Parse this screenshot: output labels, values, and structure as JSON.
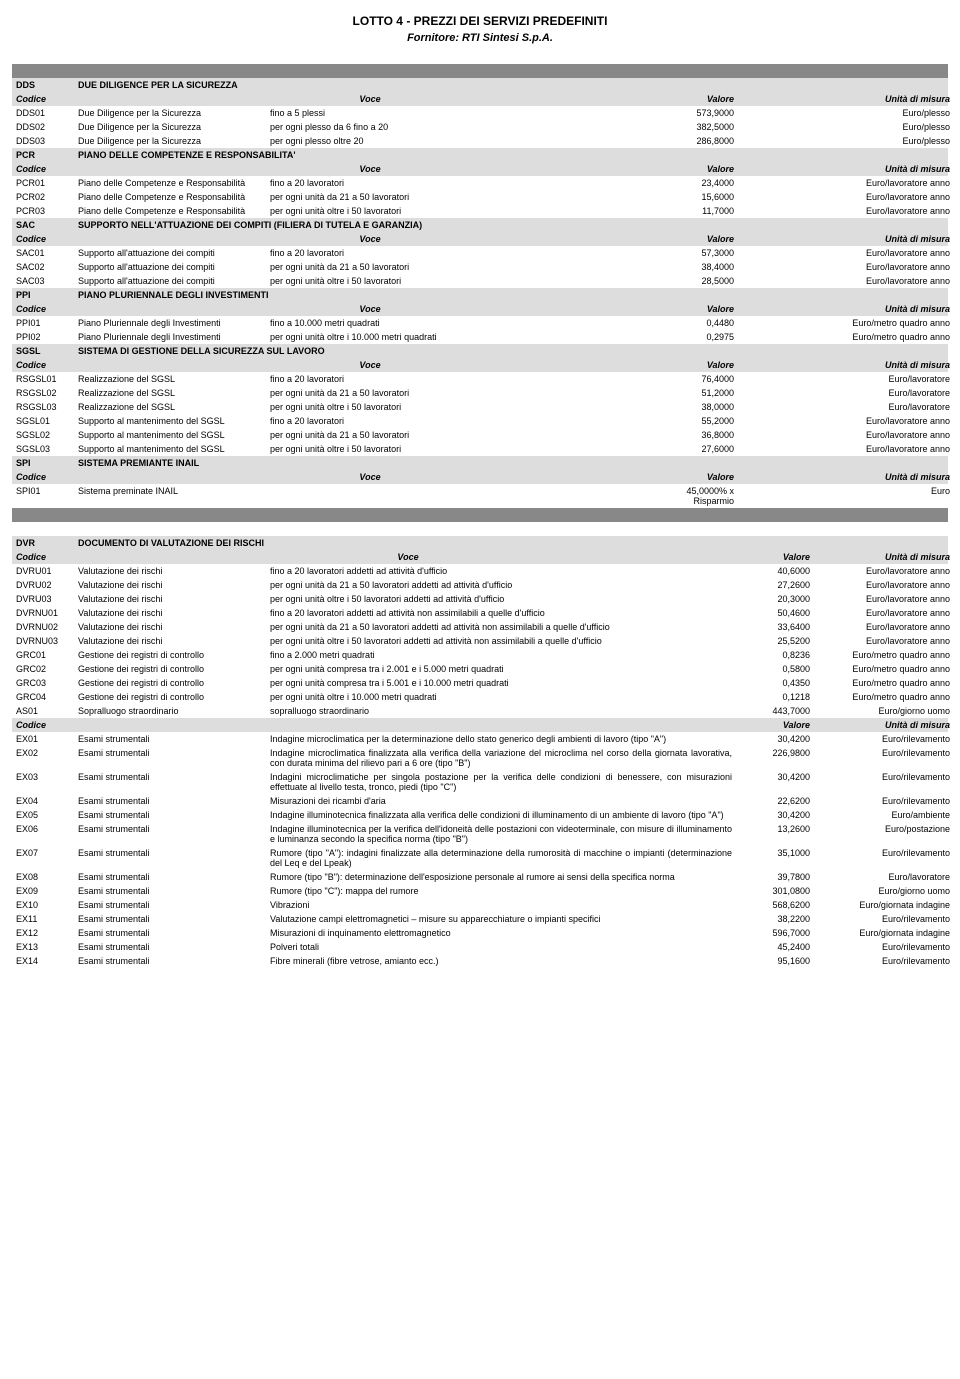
{
  "page": {
    "title": "LOTTO 4 - PREZZI DEI SERVIZI PREDEFINITI",
    "subtitle": "Fornitore: RTI Sintesi S.p.A."
  },
  "labels": {
    "codice": "Codice",
    "voce": "Voce",
    "valore": "Valore",
    "unita": "Unità di misura"
  },
  "sections": [
    {
      "code": "DDS",
      "title": "DUE DILIGENCE PER LA SICUREZZA",
      "rows": [
        {
          "c": "DDS01",
          "n": "Due Diligence per la Sicurezza",
          "d": "fino a 5 plessi",
          "v": "573,9000",
          "u": "Euro/plesso"
        },
        {
          "c": "DDS02",
          "n": "Due Diligence per la Sicurezza",
          "d": "per ogni plesso da 6 fino a 20",
          "v": "382,5000",
          "u": "Euro/plesso"
        },
        {
          "c": "DDS03",
          "n": "Due Diligence per la Sicurezza",
          "d": "per ogni plesso oltre 20",
          "v": "286,8000",
          "u": "Euro/plesso"
        }
      ]
    },
    {
      "code": "PCR",
      "title": "PIANO DELLE COMPETENZE E RESPONSABILITA'",
      "rows": [
        {
          "c": "PCR01",
          "n": "Piano delle Competenze e Responsabilità",
          "d": "fino a 20 lavoratori",
          "v": "23,4000",
          "u": "Euro/lavoratore anno"
        },
        {
          "c": "PCR02",
          "n": "Piano delle Competenze e Responsabilità",
          "d": "per ogni unità da 21 a 50 lavoratori",
          "v": "15,6000",
          "u": "Euro/lavoratore anno"
        },
        {
          "c": "PCR03",
          "n": "Piano delle Competenze e Responsabilità",
          "d": "per ogni unità oltre i 50 lavoratori",
          "v": "11,7000",
          "u": "Euro/lavoratore anno"
        }
      ]
    },
    {
      "code": "SAC",
      "title": "SUPPORTO NELL'ATTUAZIONE DEI COMPITI (FILIERA DI TUTELA E GARANZIA)",
      "rows": [
        {
          "c": "SAC01",
          "n": "Supporto all'attuazione dei compiti",
          "d": "fino a 20 lavoratori",
          "v": "57,3000",
          "u": "Euro/lavoratore anno"
        },
        {
          "c": "SAC02",
          "n": "Supporto all'attuazione dei compiti",
          "d": "per ogni unità da 21 a 50 lavoratori",
          "v": "38,4000",
          "u": "Euro/lavoratore anno"
        },
        {
          "c": "SAC03",
          "n": "Supporto all'attuazione dei compiti",
          "d": "per ogni unità oltre i 50 lavoratori",
          "v": "28,5000",
          "u": "Euro/lavoratore anno"
        }
      ]
    },
    {
      "code": "PPI",
      "title": "PIANO PLURIENNALE DEGLI INVESTIMENTI",
      "rows": [
        {
          "c": "PPI01",
          "n": "Piano Pluriennale degli Investimenti",
          "d": "fino a 10.000 metri quadrati",
          "v": "0,4480",
          "u": "Euro/metro quadro anno"
        },
        {
          "c": "PPI02",
          "n": "Piano Pluriennale degli Investimenti",
          "d": "per ogni unità oltre i 10.000 metri quadrati",
          "v": "0,2975",
          "u": "Euro/metro quadro anno"
        }
      ]
    },
    {
      "code": "SGSL",
      "title": "SISTEMA DI GESTIONE DELLA SICUREZZA SUL LAVORO",
      "rows": [
        {
          "c": "RSGSL01",
          "n": "Realizzazione del SGSL",
          "d": "fino a 20 lavoratori",
          "v": "76,4000",
          "u": "Euro/lavoratore"
        },
        {
          "c": "RSGSL02",
          "n": "Realizzazione del SGSL",
          "d": "per ogni unità da 21 a 50 lavoratori",
          "v": "51,2000",
          "u": "Euro/lavoratore"
        },
        {
          "c": "RSGSL03",
          "n": "Realizzazione del SGSL",
          "d": "per ogni unità oltre i 50 lavoratori",
          "v": "38,0000",
          "u": "Euro/lavoratore"
        },
        {
          "c": "SGSL01",
          "n": "Supporto al mantenimento del SGSL",
          "d": "fino a 20 lavoratori",
          "v": "55,2000",
          "u": "Euro/lavoratore anno"
        },
        {
          "c": "SGSL02",
          "n": "Supporto al mantenimento del SGSL",
          "d": "per ogni unità da 21 a 50 lavoratori",
          "v": "36,8000",
          "u": "Euro/lavoratore anno"
        },
        {
          "c": "SGSL03",
          "n": "Supporto al mantenimento del SGSL",
          "d": "per ogni unità oltre i 50 lavoratori",
          "v": "27,6000",
          "u": "Euro/lavoratore anno"
        }
      ]
    },
    {
      "code": "SPI",
      "title": "SISTEMA PREMIANTE INAIL",
      "rows": [
        {
          "c": "SPI01",
          "n": "Sistema preminate INAIL",
          "d": "",
          "v": "45,0000% x Risparmio",
          "u": "Euro"
        }
      ]
    }
  ],
  "sections2": [
    {
      "code": "DVR",
      "title": "DOCUMENTO DI VALUTAZIONE DEI RISCHI",
      "wide": true,
      "rows": [
        {
          "c": "DVRU01",
          "n": "Valutazione dei rischi",
          "d": "fino a 20 lavoratori addetti ad attività d'ufficio",
          "v": "40,6000",
          "u": "Euro/lavoratore anno"
        },
        {
          "c": "DVRU02",
          "n": "Valutazione dei rischi",
          "d": "per ogni unità da 21 a 50 lavoratori addetti ad attività d'ufficio",
          "v": "27,2600",
          "u": "Euro/lavoratore anno"
        },
        {
          "c": "DVRU03",
          "n": "Valutazione dei rischi",
          "d": "per ogni unità oltre i 50 lavoratori addetti ad attività d'ufficio",
          "v": "20,3000",
          "u": "Euro/lavoratore anno"
        },
        {
          "c": "DVRNU01",
          "n": "Valutazione dei rischi",
          "d": "fino a 20 lavoratori addetti ad attività non assimilabili a quelle d'ufficio",
          "v": "50,4600",
          "u": "Euro/lavoratore anno"
        },
        {
          "c": "DVRNU02",
          "n": "Valutazione dei rischi",
          "d": "per ogni unità da 21 a 50 lavoratori addetti ad attività non assimilabili a quelle d'ufficio",
          "v": "33,6400",
          "u": "Euro/lavoratore anno"
        },
        {
          "c": "DVRNU03",
          "n": "Valutazione dei rischi",
          "d": "per ogni unità oltre i 50 lavoratori addetti ad attività non assimilabili a quelle d'ufficio",
          "v": "25,5200",
          "u": "Euro/lavoratore anno"
        },
        {
          "c": "GRC01",
          "n": "Gestione dei registri di controllo",
          "d": "fino a 2.000 metri quadrati",
          "v": "0,8236",
          "u": "Euro/metro quadro anno"
        },
        {
          "c": "GRC02",
          "n": "Gestione dei registri di controllo",
          "d": "per ogni unità compresa tra i 2.001 e i 5.000 metri quadrati",
          "v": "0,5800",
          "u": "Euro/metro quadro anno"
        },
        {
          "c": "GRC03",
          "n": "Gestione dei registri di controllo",
          "d": "per ogni unità compresa tra i 5.001 e i 10.000 metri quadrati",
          "v": "0,4350",
          "u": "Euro/metro quadro anno"
        },
        {
          "c": "GRC04",
          "n": "Gestione dei registri di controllo",
          "d": "per ogni unità oltre i 10.000 metri quadrati",
          "v": "0,1218",
          "u": "Euro/metro quadro anno"
        },
        {
          "c": "AS01",
          "n": "Sopralluogo straordinario",
          "d": "sopralluogo straordinario",
          "v": "443,7000",
          "u": "Euro/giorno uomo"
        }
      ],
      "extra_header": true,
      "rows2": [
        {
          "c": "EX01",
          "n": "Esami strumentali",
          "d": "Indagine microclimatica per la determinazione dello stato generico degli ambienti di lavoro (tipo \"A\")",
          "v": "30,4200",
          "u": "Euro/rilevamento"
        },
        {
          "c": "EX02",
          "n": "Esami strumentali",
          "d": "Indagine microclimatica finalizzata alla verifica della variazione del microclima nel corso della giornata lavorativa, con durata minima del rilievo pari a 6 ore (tipo \"B\")",
          "v": "226,9800",
          "u": "Euro/rilevamento"
        },
        {
          "c": "EX03",
          "n": "Esami strumentali",
          "d": "Indagini microclimatiche per singola postazione per la verifica delle condizioni di benessere, con misurazioni effettuate al livello testa, tronco, piedi (tipo \"C\")",
          "v": "30,4200",
          "u": "Euro/rilevamento"
        },
        {
          "c": "EX04",
          "n": "Esami strumentali",
          "d": "Misurazioni dei ricambi d'aria",
          "v": "22,6200",
          "u": "Euro/rilevamento"
        },
        {
          "c": "EX05",
          "n": "Esami strumentali",
          "d": "Indagine illuminotecnica finalizzata alla verifica delle condizioni di illuminamento di un ambiente di lavoro (tipo \"A\")",
          "v": "30,4200",
          "u": "Euro/ambiente"
        },
        {
          "c": "EX06",
          "n": "Esami strumentali",
          "d": "Indagine illuminotecnica per la verifica dell'idoneità delle postazioni con videoterminale, con misure di illuminamento e luminanza secondo la specifica norma (tipo \"B\")",
          "v": "13,2600",
          "u": "Euro/postazione"
        },
        {
          "c": "EX07",
          "n": "Esami strumentali",
          "d": "Rumore (tipo \"A\"): indagini finalizzate alla determinazione della rumorosità di macchine o impianti (determinazione del Leq e del Lpeak)",
          "v": "35,1000",
          "u": "Euro/rilevamento"
        },
        {
          "c": "EX08",
          "n": "Esami strumentali",
          "d": "Rumore (tipo \"B\"): determinazione dell'esposizione personale al rumore ai sensi della specifica norma",
          "v": "39,7800",
          "u": "Euro/lavoratore"
        },
        {
          "c": "EX09",
          "n": "Esami strumentali",
          "d": "Rumore (tipo \"C\"): mappa del rumore",
          "v": "301,0800",
          "u": "Euro/giorno uomo"
        },
        {
          "c": "EX10",
          "n": "Esami strumentali",
          "d": "Vibrazioni",
          "v": "568,6200",
          "u": "Euro/giornata indagine"
        },
        {
          "c": "EX11",
          "n": "Esami strumentali",
          "d": "Valutazione campi elettromagnetici – misure su apparecchiature o impianti specifici",
          "v": "38,2200",
          "u": "Euro/rilevamento"
        },
        {
          "c": "EX12",
          "n": "Esami strumentali",
          "d": "Misurazioni di inquinamento elettromagnetico",
          "v": "596,7000",
          "u": "Euro/giornata indagine"
        },
        {
          "c": "EX13",
          "n": "Esami strumentali",
          "d": "Polveri totali",
          "v": "45,2400",
          "u": "Euro/rilevamento"
        },
        {
          "c": "EX14",
          "n": "Esami strumentali",
          "d": "Fibre minerali (fibre vetrose, amianto ecc.)",
          "v": "95,1600",
          "u": "Euro/rilevamento"
        }
      ]
    }
  ]
}
